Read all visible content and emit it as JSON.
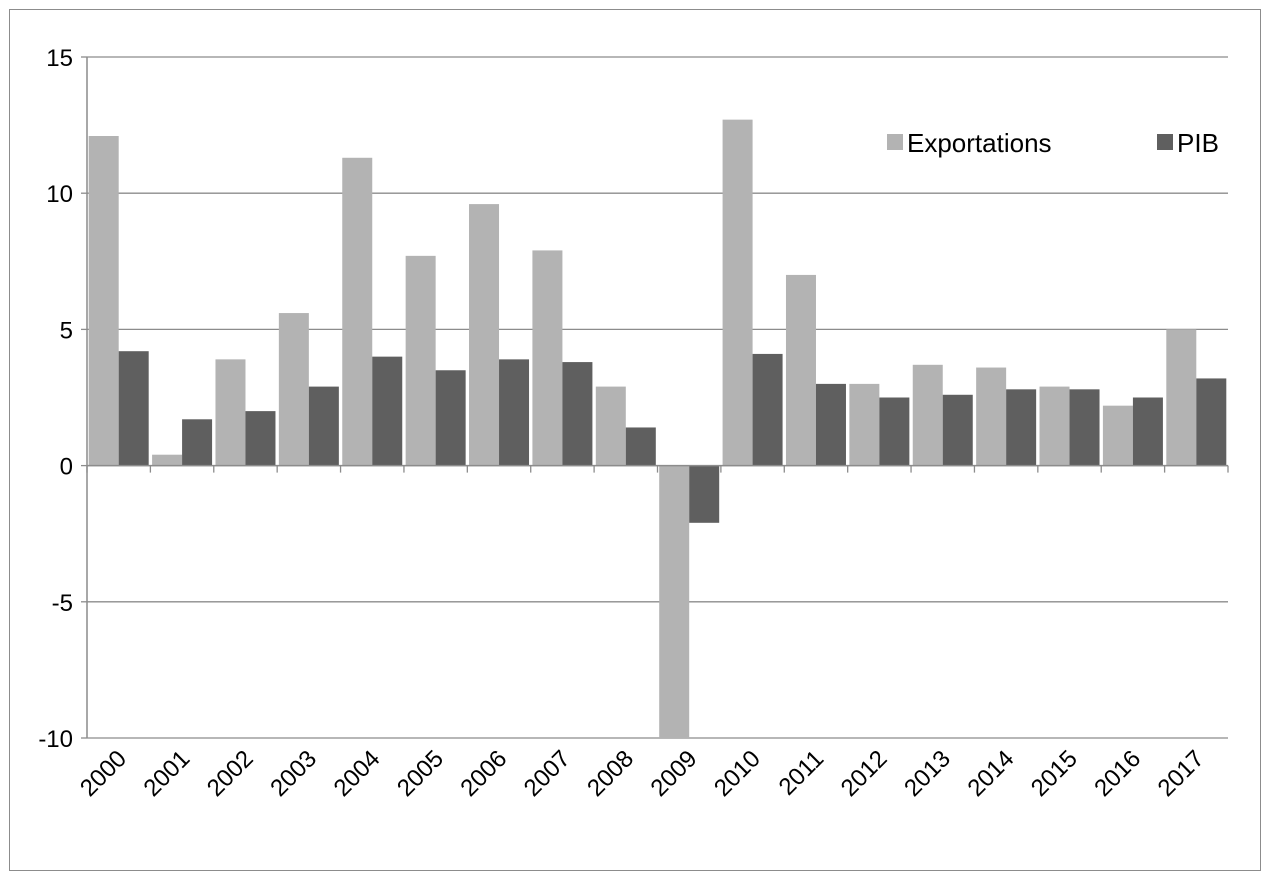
{
  "chart_data": {
    "type": "bar",
    "title": "",
    "xlabel": "",
    "ylabel": "",
    "categories": [
      "2000",
      "2001",
      "2002",
      "2003",
      "2004",
      "2005",
      "2006",
      "2007",
      "2008",
      "2009",
      "2010",
      "2011",
      "2012",
      "2013",
      "2014",
      "2015",
      "2016",
      "2017"
    ],
    "series": [
      {
        "name": "Exportations",
        "color": "#b3b3b3",
        "values": [
          12.1,
          0.4,
          3.9,
          5.6,
          11.3,
          7.7,
          9.6,
          7.9,
          2.9,
          -10.0,
          12.7,
          7.0,
          3.0,
          3.7,
          3.6,
          2.9,
          2.2,
          5.0
        ]
      },
      {
        "name": "PIB",
        "color": "#5f5f5f",
        "values": [
          4.2,
          1.7,
          2.0,
          2.9,
          4.0,
          3.5,
          3.9,
          3.8,
          1.4,
          -2.1,
          4.1,
          3.0,
          2.5,
          2.6,
          2.8,
          2.8,
          2.5,
          3.2
        ]
      }
    ],
    "ylim": [
      -10,
      15
    ],
    "yticks": [
      "-10",
      "-5",
      "0",
      "5",
      "10",
      "15"
    ],
    "grid": true,
    "legend": "top-right"
  }
}
